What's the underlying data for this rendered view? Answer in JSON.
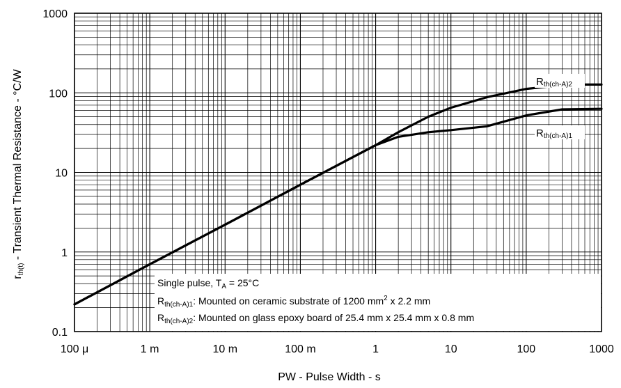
{
  "chart_data": {
    "type": "line",
    "title": "",
    "xlabel": "PW - Pulse Width - s",
    "ylabel": {
      "symbol": "r",
      "symbol_sub": "th(t)",
      "text": " - Transient Thermal Resistance - °C/W"
    },
    "x_scale": "log",
    "y_scale": "log",
    "xlim": [
      0.0001,
      1000
    ],
    "ylim": [
      0.1,
      1000
    ],
    "grid": true,
    "x_ticks": [
      {
        "value": 0.0001,
        "label": "100 μ"
      },
      {
        "value": 0.001,
        "label": "1 m"
      },
      {
        "value": 0.01,
        "label": "10 m"
      },
      {
        "value": 0.1,
        "label": "100 m"
      },
      {
        "value": 1,
        "label": "1"
      },
      {
        "value": 10,
        "label": "10"
      },
      {
        "value": 100,
        "label": "100"
      },
      {
        "value": 1000,
        "label": "1000"
      }
    ],
    "y_ticks": [
      {
        "value": 0.1,
        "label": "0.1"
      },
      {
        "value": 1,
        "label": "1"
      },
      {
        "value": 10,
        "label": "10"
      },
      {
        "value": 100,
        "label": "100"
      },
      {
        "value": 1000,
        "label": "1000"
      }
    ],
    "series": [
      {
        "name": "R",
        "name_sub": "th(ch-A)1",
        "x": [
          0.0001,
          0.001,
          0.01,
          0.1,
          1,
          2,
          5,
          10,
          30,
          100,
          300,
          1000
        ],
        "y": [
          0.22,
          0.7,
          2.2,
          7,
          22,
          28,
          32,
          34,
          38,
          52,
          62,
          63
        ]
      },
      {
        "name": "R",
        "name_sub": "th(ch-A)2",
        "x": [
          0.0001,
          0.001,
          0.01,
          0.1,
          1,
          2,
          5,
          10,
          30,
          100,
          300,
          400,
          1000
        ],
        "y": [
          0.22,
          0.7,
          2.2,
          7,
          22,
          32,
          50,
          65,
          88,
          112,
          125,
          127,
          127
        ]
      }
    ],
    "annotations": {
      "line1": {
        "text": "Single pulse, T",
        "sub": "A",
        "tail": " = 25°C"
      },
      "line2": {
        "symbol": "R",
        "sub": "th(ch-A)1",
        "text": ": Mounted on ceramic substrate of 1200 mm",
        "sup": "2",
        "tail": " x 2.2 mm"
      },
      "line3": {
        "symbol": "R",
        "sub": "th(ch-A)2",
        "text": ": Mounted on glass epoxy board of 25.4 mm x 25.4 mm x 0.8 mm"
      }
    }
  }
}
